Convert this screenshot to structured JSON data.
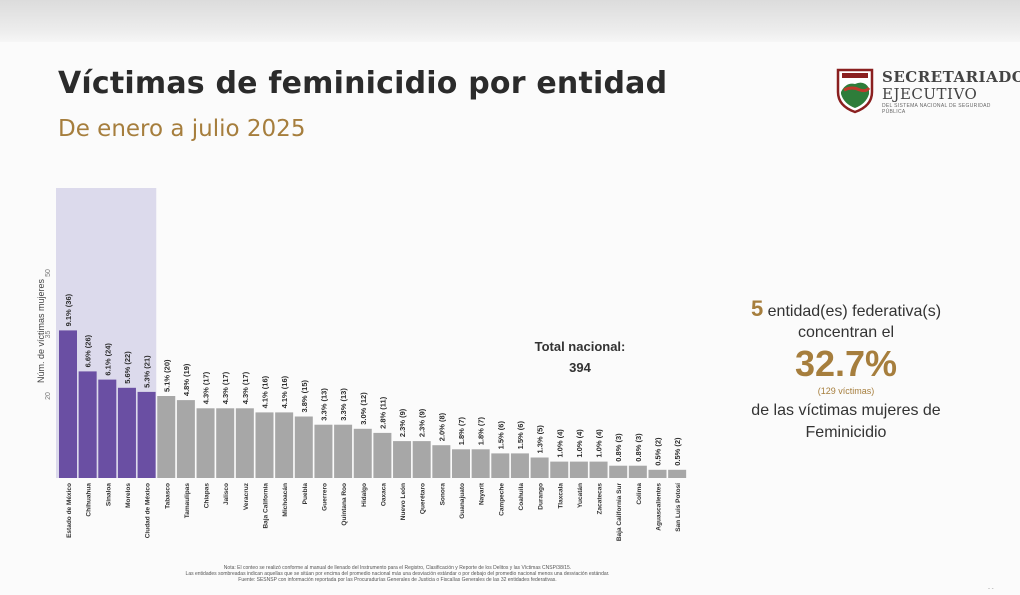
{
  "header": {
    "title": "Víctimas de feminicidio por entidad",
    "subtitle": "De enero a julio 2025"
  },
  "logo": {
    "line1": "SECRETARIADO",
    "line2": "EJECUTIVO",
    "line3": "DEL SISTEMA NACIONAL DE SEGURIDAD PÚBLICA"
  },
  "colors": {
    "highlight_bar": "#6a4fa3",
    "regular_bar": "#a7a7a7",
    "highlight_band": "#dcdaec",
    "accent_gold": "#a67e3d"
  },
  "chart_data": {
    "type": "bar",
    "title": "Víctimas de feminicidio por entidad",
    "subtitle": "De enero a julio 2025",
    "ylabel": "Núm. de víctimas mujeres",
    "xlabel": "",
    "ylim": [
      0,
      50
    ],
    "yticks": [
      20,
      35,
      50
    ],
    "highlighted_count": 5,
    "categories": [
      "Estado de México",
      "Chihuahua",
      "Sinaloa",
      "Morelos",
      "Ciudad de México",
      "Tabasco",
      "Tamaulipas",
      "Chiapas",
      "Jalisco",
      "Veracruz",
      "Baja California",
      "Michoacán",
      "Puebla",
      "Guerrero",
      "Quintana Roo",
      "Hidalgo",
      "Oaxaca",
      "Nuevo León",
      "Querétaro",
      "Sonora",
      "Guanajuato",
      "Nayarit",
      "Campeche",
      "Coahuila",
      "Durango",
      "Tlaxcala",
      "Yucatán",
      "Zacatecas",
      "Baja California Sur",
      "Colima",
      "Aguascalientes",
      "San Luis Potosí"
    ],
    "values": [
      36,
      26,
      24,
      22,
      21,
      20,
      19,
      17,
      17,
      17,
      16,
      16,
      15,
      13,
      13,
      12,
      11,
      9,
      9,
      8,
      7,
      7,
      6,
      6,
      5,
      4,
      4,
      4,
      3,
      3,
      2,
      2
    ],
    "labels": [
      "9.1% (36)",
      "6.6% (26)",
      "6.1% (24)",
      "5.6% (22)",
      "5.3% (21)",
      "5.1% (20)",
      "4.8% (19)",
      "4.3% (17)",
      "4.3% (17)",
      "4.3% (17)",
      "4.1% (16)",
      "4.1% (16)",
      "3.8% (15)",
      "3.3% (13)",
      "3.3% (13)",
      "3.0% (12)",
      "2.8% (11)",
      "2.3% (9)",
      "2.3% (9)",
      "2.0% (8)",
      "1.8% (7)",
      "1.8% (7)",
      "1.5% (6)",
      "1.5% (6)",
      "1.3% (5)",
      "1.0% (4)",
      "1.0% (4)",
      "1.0% (4)",
      "0.8% (3)",
      "0.8% (3)",
      "0.5% (2)",
      "0.5% (2)"
    ],
    "annotation": {
      "label": "Total nacional:",
      "value": "394"
    }
  },
  "summary": {
    "count": "5",
    "line1": "entidad(es)  federativa(s)",
    "line2": "concentran el",
    "percent": "32.7%",
    "victims": "(129 víctimas)",
    "line3": "de las  víctimas  mujeres de",
    "line4": "Feminicidio"
  },
  "footnote": {
    "line1": "Nota: El conteo se realizó conforme al manual de llenado del Instrumento para el Registro, Clasificación y Reporte de los Delitos y las Víctimas CNSP/38/15.",
    "line2": "Las entidades sombreadas indican aquellas que se sitúan por encima del promedio nacional más una desviación estándar o por debajo del promedio nacional menos una desviación estándar.",
    "line3": "Fuente: SESNSP con información reportada por las Procuradurías Generales de Justicia o Fiscalías Generales de las 32 entidades federativas."
  }
}
